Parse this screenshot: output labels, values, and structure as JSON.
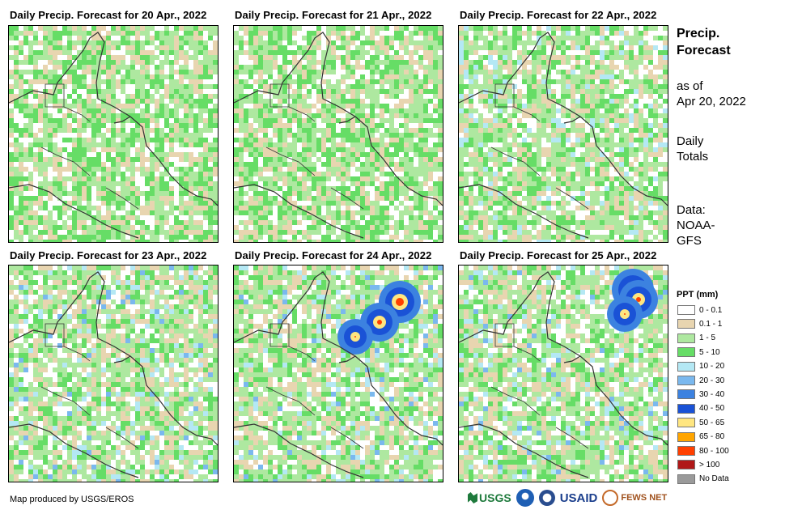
{
  "panels": [
    {
      "title": "Daily Precip. Forecast for 20 Apr., 2022"
    },
    {
      "title": "Daily Precip. Forecast for 21 Apr., 2022"
    },
    {
      "title": "Daily Precip. Forecast for 22 Apr., 2022"
    },
    {
      "title": "Daily Precip. Forecast for 23 Apr., 2022"
    },
    {
      "title": "Daily Precip. Forecast for 24 Apr., 2022"
    },
    {
      "title": "Daily Precip. Forecast for 25 Apr., 2022"
    }
  ],
  "sidebar": {
    "heading_line1": "Precip.",
    "heading_line2": "Forecast",
    "asof_line1": "as of",
    "asof_line2": "Apr 20, 2022",
    "totals_line1": "Daily",
    "totals_line2": "Totals",
    "data_line1": "Data:",
    "data_line2": "NOAA-",
    "data_line3": "GFS"
  },
  "legend": {
    "title": "PPT (mm)",
    "items": [
      {
        "label": "0 - 0.1",
        "color": "#ffffff"
      },
      {
        "label": "0.1 - 1",
        "color": "#e8d5b0"
      },
      {
        "label": "1 - 5",
        "color": "#aee8a0"
      },
      {
        "label": "5 - 10",
        "color": "#66dd66"
      },
      {
        "label": "10 - 20",
        "color": "#b4e8f4"
      },
      {
        "label": "20 - 30",
        "color": "#7ab8ee"
      },
      {
        "label": "30 - 40",
        "color": "#3c82e0"
      },
      {
        "label": "40 - 50",
        "color": "#1a52d6"
      },
      {
        "label": "50 - 65",
        "color": "#ffe680"
      },
      {
        "label": "65 - 80",
        "color": "#ffa500"
      },
      {
        "label": "80 - 100",
        "color": "#ff4000"
      },
      {
        "label": "> 100",
        "color": "#b01818"
      },
      {
        "label": "No Data",
        "color": "#9a9a9a"
      }
    ]
  },
  "footer": {
    "credit": "Map produced by USGS/EROS",
    "logo_usgs": "USGS",
    "logo_usaid": "USAID",
    "logo_fews": "FEWS NET"
  }
}
